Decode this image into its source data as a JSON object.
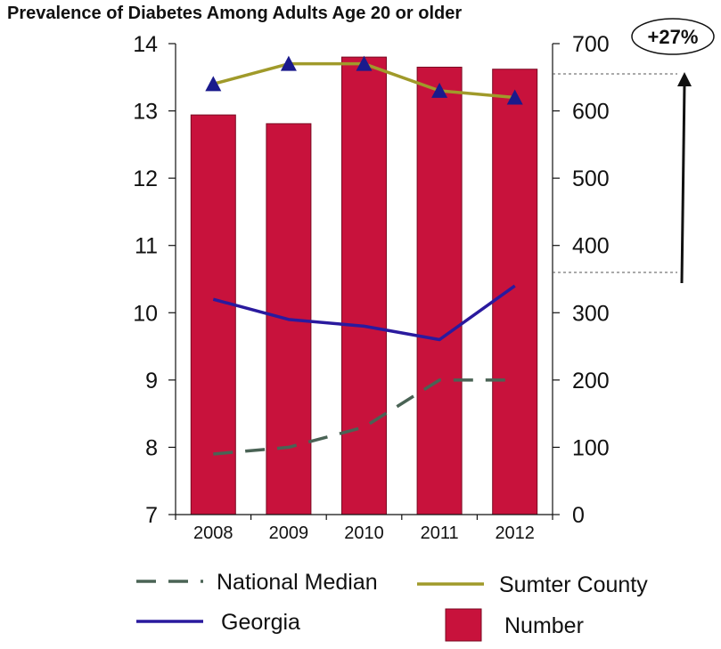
{
  "chart_data": {
    "type": "bar",
    "title": "Prevalence of Diabetes Among Adults Age 20 or older",
    "categories": [
      "2008",
      "2009",
      "2010",
      "2011",
      "2012"
    ],
    "left_axis": {
      "ylim": [
        7,
        14
      ],
      "ticks": [
        "7",
        "8",
        "9",
        "10",
        "11",
        "12",
        "13",
        "14"
      ]
    },
    "right_axis": {
      "ylim": [
        0,
        700
      ],
      "ticks": [
        "0",
        "100",
        "200",
        "300",
        "400",
        "500",
        "600",
        "700"
      ]
    },
    "series": [
      {
        "name": "Number",
        "type": "bar",
        "axis": "right",
        "color": "#c8123c",
        "values": [
          594,
          581,
          680,
          665,
          662
        ]
      },
      {
        "name": "National Median",
        "type": "line",
        "axis": "left",
        "style": "dashed",
        "color": "#4a6355",
        "values": [
          7.9,
          8.0,
          8.3,
          9.0,
          9.0
        ]
      },
      {
        "name": "Georgia",
        "type": "line",
        "axis": "left",
        "style": "solid",
        "color": "#2a1a9e",
        "values": [
          10.2,
          9.9,
          9.8,
          9.6,
          10.4
        ]
      },
      {
        "name": "Sumter County",
        "type": "line",
        "axis": "left",
        "style": "solid",
        "color": "#a09a2a",
        "marker": "triangle",
        "marker_color": "#1a1a8c",
        "values": [
          13.4,
          13.7,
          13.7,
          13.3,
          13.2
        ]
      }
    ],
    "annotation": {
      "text": "+27%",
      "from_value": 360,
      "to_value": 655,
      "axis": "right"
    },
    "legend": {
      "placement": "bottom",
      "items": [
        "National Median",
        "Sumter County",
        "Georgia",
        "Number"
      ]
    },
    "grid": false
  }
}
